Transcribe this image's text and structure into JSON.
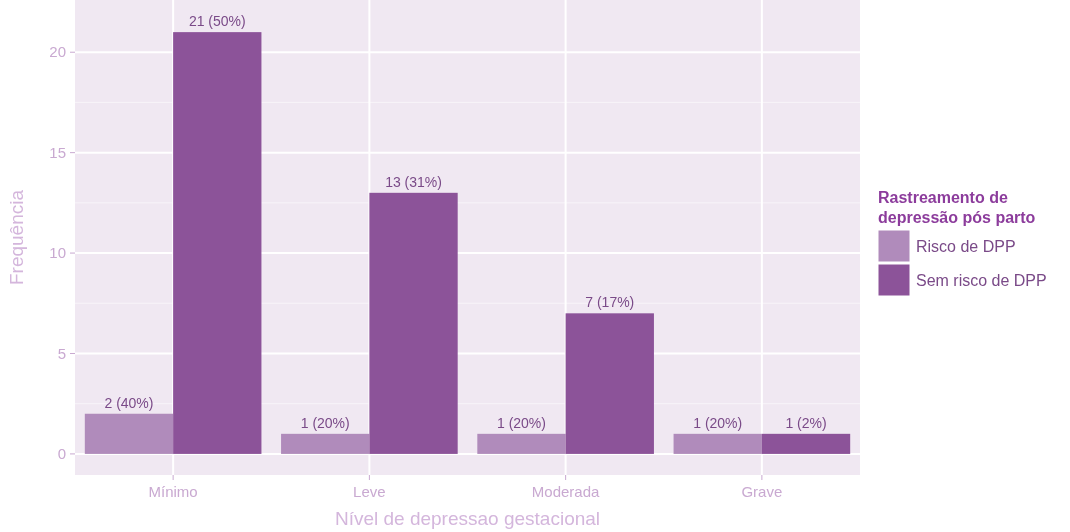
{
  "chart_data": {
    "type": "bar",
    "xlabel": "Nível de depressao gestacional",
    "ylabel": "Frequência",
    "legend_title": "Rastreamento de\ndepressão pós parto",
    "categories": [
      "Mínimo",
      "Leve",
      "Moderada",
      "Grave"
    ],
    "series": [
      {
        "name": "Risco de DPP",
        "color": "#b08bbb",
        "values": [
          2,
          1,
          1,
          1
        ],
        "value_labels": [
          "2 (40%)",
          "1 (20%)",
          "1 (20%)",
          "1 (20%)"
        ]
      },
      {
        "name": "Sem risco de DPP",
        "color": "#8c5399",
        "values": [
          21,
          13,
          7,
          1
        ],
        "value_labels": [
          "21 (50%)",
          "13 (31%)",
          "7 (17%)",
          "1 (2%)"
        ]
      }
    ],
    "ylim": [
      -1.05,
      22.6
    ],
    "yticks": [
      0,
      5,
      10,
      15,
      20
    ],
    "grid": true,
    "legend": "right"
  }
}
